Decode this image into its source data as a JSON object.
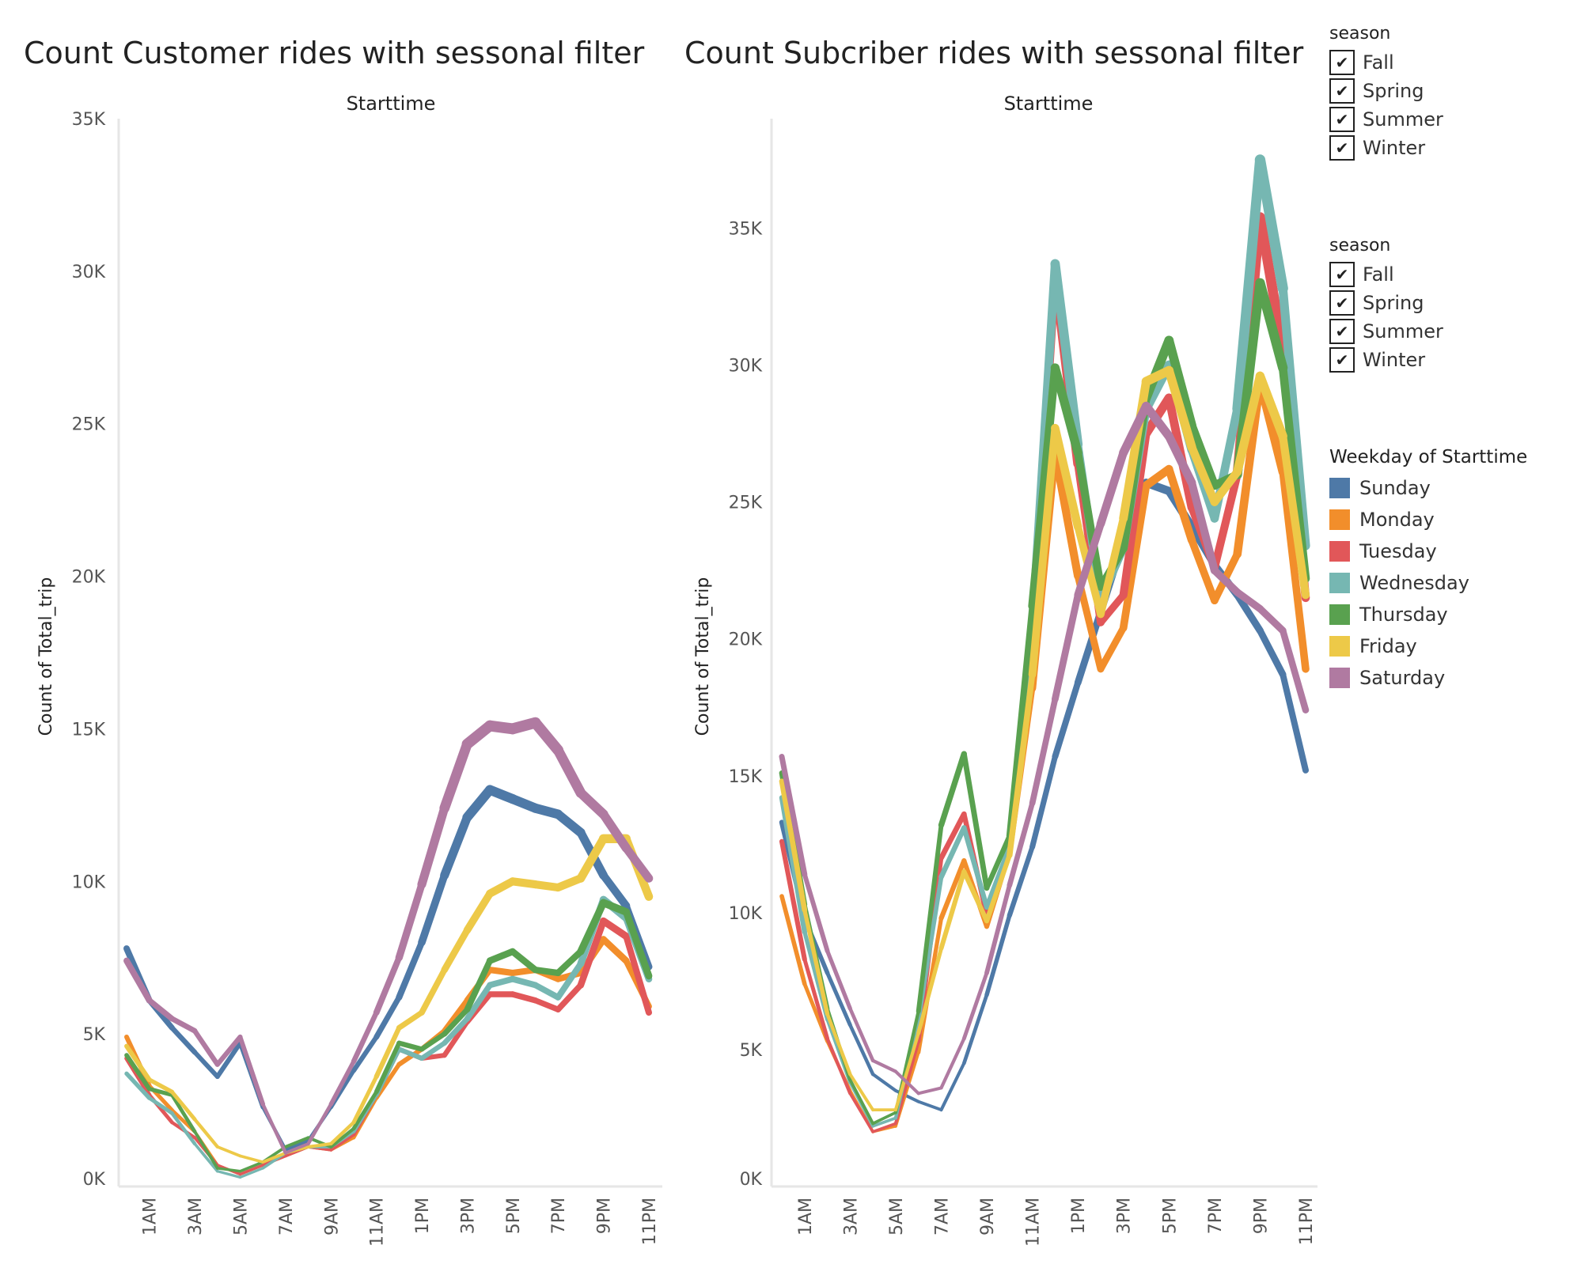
{
  "filters": [
    {
      "title": "season",
      "items": [
        "Fall",
        "Spring",
        "Summer",
        "Winter"
      ],
      "checked": [
        true,
        true,
        true,
        true
      ]
    },
    {
      "title": "season",
      "items": [
        "Fall",
        "Spring",
        "Summer",
        "Winter"
      ],
      "checked": [
        true,
        true,
        true,
        true
      ]
    }
  ],
  "check_mark": "✔",
  "legend": {
    "title": "Weekday of Starttime",
    "items": [
      {
        "label": "Sunday",
        "color": "#4e79a7"
      },
      {
        "label": "Monday",
        "color": "#f28e2b"
      },
      {
        "label": "Tuesday",
        "color": "#e15759"
      },
      {
        "label": "Wednesday",
        "color": "#76b7b2"
      },
      {
        "label": "Thursday",
        "color": "#59a14f"
      },
      {
        "label": "Friday",
        "color": "#edc948"
      },
      {
        "label": "Saturday",
        "color": "#b07aa1"
      }
    ]
  },
  "chart_data": [
    {
      "type": "line",
      "title": "Count Customer rides with sessonal filter",
      "header": "Starttime",
      "xlabel": "",
      "ylabel": "Count of Total_trip",
      "x": [
        "12AM",
        "1AM",
        "2AM",
        "3AM",
        "4AM",
        "5AM",
        "6AM",
        "7AM",
        "8AM",
        "9AM",
        "10AM",
        "11AM",
        "12PM",
        "1PM",
        "2PM",
        "3PM",
        "4PM",
        "5PM",
        "6PM",
        "7PM",
        "8PM",
        "9PM",
        "10PM",
        "11PM"
      ],
      "xtick_labels": [
        "1AM",
        "3AM",
        "5AM",
        "7AM",
        "9AM",
        "11AM",
        "1PM",
        "3PM",
        "5PM",
        "7PM",
        "9PM",
        "11PM"
      ],
      "yticks": [
        0,
        5000,
        10000,
        15000,
        20000,
        25000,
        30000,
        35000
      ],
      "ytick_labels": [
        "0K",
        "5K",
        "10K",
        "15K",
        "20K",
        "25K",
        "30K",
        "35K"
      ],
      "ylim": [
        0,
        35000
      ],
      "series": [
        {
          "name": "Sunday",
          "values": [
            7800,
            6100,
            5200,
            4400,
            3600,
            4700,
            2600,
            1200,
            1500,
            2600,
            3800,
            4900,
            6200,
            8000,
            10200,
            12100,
            13000,
            12700,
            12400,
            12200,
            11600,
            10200,
            9200,
            7200
          ]
        },
        {
          "name": "Monday",
          "values": [
            4900,
            3300,
            2500,
            1800,
            700,
            400,
            700,
            1000,
            1300,
            1200,
            1600,
            2900,
            4000,
            4500,
            5100,
            6100,
            7100,
            7000,
            7100,
            6800,
            7000,
            8100,
            7400,
            5900
          ]
        },
        {
          "name": "Tuesday",
          "values": [
            4200,
            3000,
            2100,
            1600,
            700,
            400,
            700,
            1000,
            1300,
            1200,
            1700,
            3000,
            4500,
            4200,
            4300,
            5400,
            6300,
            6300,
            6100,
            5800,
            6600,
            8700,
            8200,
            5700
          ]
        },
        {
          "name": "Wednesday",
          "values": [
            3700,
            2900,
            2400,
            1400,
            500,
            300,
            600,
            1100,
            1300,
            1300,
            1800,
            3000,
            4500,
            4200,
            4700,
            5500,
            6600,
            6800,
            6600,
            6200,
            7300,
            9400,
            8800,
            6800
          ]
        },
        {
          "name": "Thursday",
          "values": [
            4300,
            3200,
            3000,
            1800,
            600,
            500,
            800,
            1300,
            1600,
            1300,
            1900,
            3100,
            4700,
            4500,
            5000,
            5800,
            7400,
            7700,
            7100,
            7000,
            7700,
            9300,
            9000,
            6900
          ]
        },
        {
          "name": "Friday",
          "values": [
            4600,
            3500,
            3100,
            2200,
            1300,
            1000,
            800,
            1100,
            1300,
            1400,
            2100,
            3600,
            5200,
            5700,
            7100,
            8400,
            9600,
            10000,
            9900,
            9800,
            10100,
            11400,
            11400,
            9500
          ]
        },
        {
          "name": "Saturday",
          "values": [
            7400,
            6100,
            5500,
            5100,
            4000,
            4900,
            2700,
            1100,
            1400,
            2700,
            4100,
            5700,
            7500,
            9900,
            12400,
            14500,
            15100,
            15000,
            15200,
            14300,
            12900,
            12200,
            11100,
            10100
          ]
        }
      ]
    },
    {
      "type": "line",
      "title": "Count Subcriber rides with sessonal filter",
      "header": "Starttime",
      "xlabel": "",
      "ylabel": "Count of Total_trip",
      "x": [
        "12AM",
        "1AM",
        "2AM",
        "3AM",
        "4AM",
        "5AM",
        "6AM",
        "7AM",
        "8AM",
        "9AM",
        "10AM",
        "11AM",
        "12PM",
        "1PM",
        "2PM",
        "3PM",
        "4PM",
        "5PM",
        "6PM",
        "7PM",
        "8PM",
        "9PM",
        "10PM",
        "11PM"
      ],
      "xtick_labels": [
        "1AM",
        "3AM",
        "5AM",
        "7AM",
        "9AM",
        "11AM",
        "1PM",
        "3PM",
        "5PM",
        "7PM",
        "9PM",
        "11PM"
      ],
      "yticks": [
        0,
        5000,
        10000,
        15000,
        20000,
        25000,
        30000,
        35000
      ],
      "ytick_labels": [
        "0K",
        "5K",
        "10K",
        "15K",
        "20K",
        "25K",
        "30K",
        "35K"
      ],
      "ylim": [
        0,
        39000
      ],
      "series": [
        {
          "name": "Sunday",
          "values": [
            13300,
            9800,
            7800,
            5900,
            4100,
            3500,
            3100,
            2800,
            4500,
            7000,
            9900,
            12400,
            15700,
            18400,
            21000,
            23600,
            25700,
            25400,
            24100,
            22700,
            21600,
            20300,
            18700,
            15200
          ]
        },
        {
          "name": "Monday",
          "values": [
            10600,
            7400,
            5300,
            3500,
            2000,
            2200,
            4900,
            9800,
            11900,
            9500,
            12200,
            18200,
            26800,
            22300,
            18900,
            20400,
            25600,
            26200,
            23600,
            21400,
            23100,
            29400,
            26100,
            18900
          ]
        },
        {
          "name": "Tuesday",
          "values": [
            12600,
            8300,
            5400,
            3400,
            2000,
            2300,
            5300,
            12000,
            13600,
            9900,
            12300,
            20200,
            33300,
            26400,
            20600,
            21600,
            27500,
            28800,
            24800,
            22600,
            26000,
            35400,
            30600,
            21500
          ]
        },
        {
          "name": "Wednesday",
          "values": [
            14200,
            9300,
            6100,
            3800,
            2200,
            2500,
            6100,
            11300,
            13100,
            10200,
            12400,
            20400,
            33700,
            27100,
            21400,
            23300,
            28400,
            30000,
            26900,
            24400,
            28400,
            37500,
            32800,
            23400
          ]
        },
        {
          "name": "Thursday",
          "values": [
            15100,
            10300,
            6500,
            3900,
            2300,
            2700,
            6400,
            13200,
            15800,
            10900,
            12800,
            21200,
            29900,
            26800,
            21900,
            23300,
            28800,
            30900,
            27800,
            25600,
            26000,
            33000,
            29900,
            22200
          ]
        },
        {
          "name": "Friday",
          "values": [
            14800,
            10100,
            6300,
            4100,
            2800,
            2800,
            5600,
            8700,
            11500,
            9700,
            12100,
            18700,
            27700,
            24100,
            20900,
            24400,
            29400,
            29800,
            27000,
            25000,
            26100,
            29600,
            27400,
            21600
          ]
        },
        {
          "name": "Saturday",
          "values": [
            15700,
            11400,
            8600,
            6500,
            4600,
            4200,
            3400,
            3600,
            5400,
            7800,
            11000,
            14000,
            17800,
            21600,
            24200,
            26800,
            28500,
            27400,
            25700,
            22500,
            21700,
            21100,
            20300,
            17400
          ]
        }
      ]
    }
  ]
}
